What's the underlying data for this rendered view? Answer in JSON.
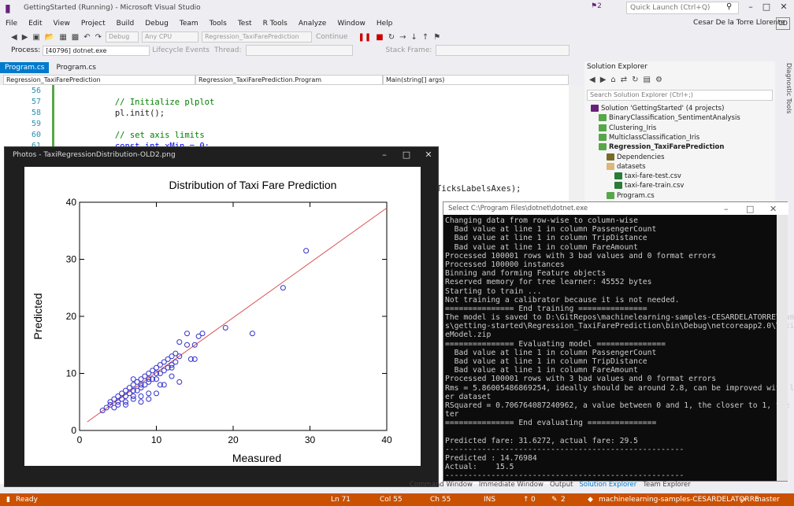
{
  "window": {
    "title": "GettingStarted (Running) - Microsoft Visual Studio",
    "notification_count": "2",
    "quick_launch_placeholder": "Quick Launch (Ctrl+Q)",
    "user": "Cesar De la Torre Llorente",
    "user_badge": "CD"
  },
  "menu": [
    "File",
    "Edit",
    "View",
    "Project",
    "Build",
    "Debug",
    "Team",
    "Tools",
    "Test",
    "R Tools",
    "Analyze",
    "Window",
    "Help"
  ],
  "toolbar": {
    "config": "Debug",
    "platform": "Any CPU",
    "startup": "Regression_TaxiFarePrediction",
    "continue": "Continue"
  },
  "toolbar2": {
    "process_label": "Process:",
    "process_value": "[40796] dotnet.exe",
    "lifecycle": "Lifecycle Events",
    "thread": "Thread:",
    "stack_frame": "Stack Frame:"
  },
  "tabs": [
    "Program.cs",
    "Program.cs"
  ],
  "navbar": {
    "project": "Regression_TaxiFarePrediction",
    "class": "Regression_TaxiFarePrediction.Program",
    "member": "Main(string[] args)"
  },
  "editor": {
    "lines": [
      {
        "n": "56",
        "text": "",
        "cls": ""
      },
      {
        "n": "57",
        "text": "            // Initialize plplot",
        "cls": "cm"
      },
      {
        "n": "58",
        "text": "            pl.init();",
        "cls": ""
      },
      {
        "n": "59",
        "text": "",
        "cls": ""
      },
      {
        "n": "60",
        "text": "            // set axis limits",
        "cls": "cm"
      },
      {
        "n": "61",
        "text": "            const int xMin = 0;",
        "cls": "kw"
      }
    ],
    "visible_fragment": "TicksLabelsAxes);"
  },
  "solution_explorer": {
    "title": "Solution Explorer",
    "search_placeholder": "Search Solution Explorer (Ctrl+;)",
    "items": [
      {
        "label": "Solution 'GettingStarted' (4 projects)",
        "indent": 0,
        "bold": false
      },
      {
        "label": "BinaryClassification_SentimentAnalysis",
        "indent": 1,
        "bold": false
      },
      {
        "label": "Clustering_Iris",
        "indent": 1,
        "bold": false
      },
      {
        "label": "MulticlassClassification_Iris",
        "indent": 1,
        "bold": false
      },
      {
        "label": "Regression_TaxiFarePrediction",
        "indent": 1,
        "bold": true
      },
      {
        "label": "Dependencies",
        "indent": 2,
        "bold": false
      },
      {
        "label": "datasets",
        "indent": 2,
        "bold": false
      },
      {
        "label": "taxi-fare-test.csv",
        "indent": 3,
        "bold": false
      },
      {
        "label": "taxi-fare-train.csv",
        "indent": 3,
        "bold": false
      },
      {
        "label": "Program.cs",
        "indent": 2,
        "bold": false
      }
    ],
    "diagnostic": "Diagnostic Tools"
  },
  "photos": {
    "title": "Photos - TaxiRegressionDistribution-OLD2.png"
  },
  "chart_data": {
    "type": "scatter",
    "title": "Distribution of Taxi Fare Prediction",
    "xlabel": "Measured",
    "ylabel": "Predicted",
    "xlim": [
      0,
      40
    ],
    "ylim": [
      0,
      40
    ],
    "xticks": [
      "0",
      "10",
      "20",
      "30",
      "40"
    ],
    "yticks": [
      "0",
      "10",
      "20",
      "30",
      "40"
    ],
    "regression_line": {
      "x": [
        1,
        40
      ],
      "y": [
        1.5,
        39
      ]
    },
    "points": [
      [
        3,
        3.5
      ],
      [
        3.5,
        4
      ],
      [
        4,
        4.5
      ],
      [
        4,
        5
      ],
      [
        4.5,
        4
      ],
      [
        4.5,
        5.5
      ],
      [
        5,
        5
      ],
      [
        5,
        6
      ],
      [
        5.5,
        5.5
      ],
      [
        5.5,
        6.5
      ],
      [
        6,
        5
      ],
      [
        6,
        6
      ],
      [
        6,
        7
      ],
      [
        6.5,
        6.5
      ],
      [
        6.5,
        7.5
      ],
      [
        7,
        6
      ],
      [
        7,
        7
      ],
      [
        7,
        8
      ],
      [
        7.5,
        7
      ],
      [
        7.5,
        8.5
      ],
      [
        8,
        7.5
      ],
      [
        8,
        8
      ],
      [
        8,
        9
      ],
      [
        8.5,
        8
      ],
      [
        8.5,
        9.5
      ],
      [
        9,
        8.5
      ],
      [
        9,
        10
      ],
      [
        9,
        9
      ],
      [
        9.5,
        9
      ],
      [
        9.5,
        10.5
      ],
      [
        10,
        9
      ],
      [
        10,
        10
      ],
      [
        10,
        11
      ],
      [
        10.5,
        10
      ],
      [
        10.5,
        11.5
      ],
      [
        11,
        10.5
      ],
      [
        11,
        12
      ],
      [
        11.5,
        11
      ],
      [
        11.5,
        12.5
      ],
      [
        12,
        11.5
      ],
      [
        12,
        13
      ],
      [
        12.5,
        12
      ],
      [
        12.5,
        13.5
      ],
      [
        13,
        13
      ],
      [
        13,
        15.5
      ],
      [
        14,
        15
      ],
      [
        14,
        17
      ],
      [
        14.5,
        12.5
      ],
      [
        15,
        12.5
      ],
      [
        15,
        15
      ],
      [
        15.5,
        16.5
      ],
      [
        16,
        17
      ],
      [
        19,
        18
      ],
      [
        22.5,
        17
      ],
      [
        26.5,
        25
      ],
      [
        29.5,
        31.5
      ],
      [
        8,
        6
      ],
      [
        9,
        6.5
      ],
      [
        10,
        6.5
      ],
      [
        13,
        8.5
      ],
      [
        7,
        5.5
      ],
      [
        6,
        4.5
      ],
      [
        5,
        4.5
      ],
      [
        11,
        8
      ],
      [
        12,
        9.5
      ],
      [
        9,
        5.5
      ],
      [
        8,
        5
      ],
      [
        7,
        9
      ],
      [
        10.5,
        8
      ],
      [
        12,
        11
      ]
    ]
  },
  "console": {
    "title": "Select C:\\Program Files\\dotnet\\dotnet.exe",
    "lines": [
      "Changing data from row-wise to column-wise",
      "  Bad value at line 1 in column PassengerCount",
      "  Bad value at line 1 in column TripDistance",
      "  Bad value at line 1 in column FareAmount",
      "Processed 100001 rows with 3 bad values and 0 format errors",
      "Processed 100000 instances",
      "Binning and forming Feature objects",
      "Reserved memory for tree learner: 45552 bytes",
      "Starting to train ...",
      "Not training a calibrator because it is not needed.",
      "=============== End training ===============",
      "The model is saved to D:\\GitRepos\\machinelearning-samples-CESARDELATORRE\\sample",
      "s\\getting-started\\Regression_TaxiFarePrediction\\bin\\Debug\\netcoreapp2.0\\TaxiFar",
      "eModel.zip",
      "=============== Evaluating model ===============",
      "  Bad value at line 1 in column PassengerCount",
      "  Bad value at line 1 in column TripDistance",
      "  Bad value at line 1 in column FareAmount",
      "Processed 100001 rows with 3 bad values and 0 format errors",
      "Rms = 5.86005486869254, ideally should be around 2.8, can be improved with larg",
      "er dataset",
      "RSquared = 0.706764087240962, a value between 0 and 1, the closer to 1, the bet",
      "ter",
      "=============== End evaluating ===============",
      "",
      "Predicted fare: 31.6272, actual fare: 29.5",
      "----------------------------------------------------",
      "Predicted : 14.76984",
      "Actual:    15.5",
      "----------------------------------------------------"
    ]
  },
  "bottom_tabs": [
    "Command Window",
    "Immediate Window",
    "Output",
    "Solution Explorer",
    "Team Explorer"
  ],
  "status": {
    "ready": "Ready",
    "ln": "Ln 71",
    "col": "Col 55",
    "ch": "Ch 55",
    "ins": "INS",
    "up": "0",
    "edits": "2",
    "repo": "machinelearning-samples-CESARDELATORRE",
    "branch": "master"
  },
  "colors": {
    "accent": "#007acc",
    "status": "#ca5100",
    "plot_line": "#d9534f",
    "plot_point": "#3333cc"
  }
}
